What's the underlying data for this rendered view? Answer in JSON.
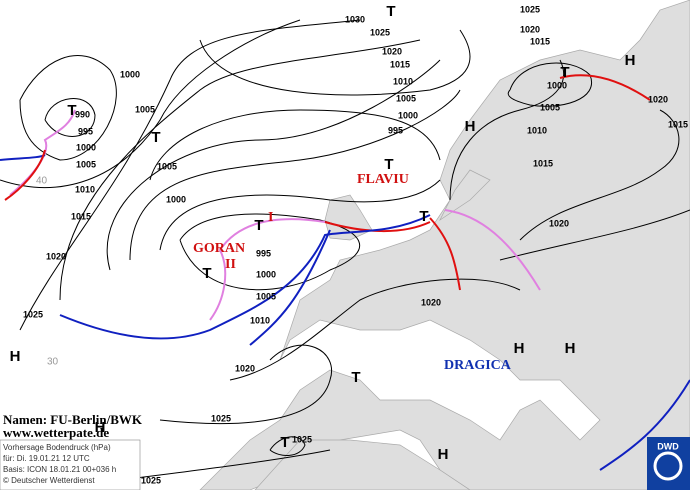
{
  "isobar_labels": [
    "1030",
    "1025",
    "1025",
    "1020",
    "1015",
    "1020",
    "1015",
    "1010",
    "1005",
    "1000",
    "995",
    "1000",
    "1005",
    "990",
    "995",
    "1000",
    "1005",
    "1010",
    "1015",
    "1005",
    "1000",
    "995",
    "1000",
    "1005",
    "1010",
    "1020",
    "1025",
    "1020",
    "1025",
    "1020",
    "1020",
    "1015",
    "1010",
    "1005",
    "1000",
    "1020",
    "1015",
    "1025",
    "1025"
  ],
  "pressure_centers": [
    "T",
    "T",
    "T",
    "T",
    "T",
    "T",
    "T",
    "T",
    "T",
    "T",
    "H",
    "H",
    "H",
    "H",
    "H",
    "H",
    "H"
  ],
  "storm_names": [
    "FLAVIU",
    "I",
    "GORAN",
    "II",
    "DRAGICA"
  ],
  "latitude_labels": [
    "40",
    "30"
  ],
  "credits": [
    "Namen: FU-Berlin/BWK",
    "www.wetterpate.de"
  ],
  "info_box": [
    "Vorhersage Bodendruck (hPa)",
    "für:  Di. 19.01.21  12 UTC",
    "Basis: ICON  18.01.21 00+036 h",
    "© Deutscher Wetterdienst"
  ],
  "logo": "DWD"
}
